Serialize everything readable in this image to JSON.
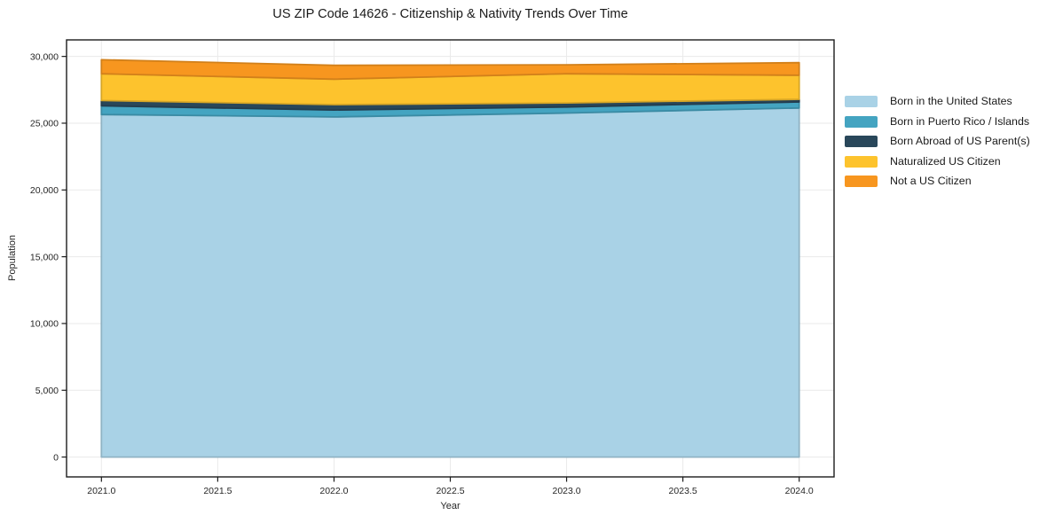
{
  "chart_data": {
    "type": "area",
    "stacked": true,
    "title": "US ZIP Code 14626 - Citizenship & Nativity Trends Over Time",
    "xlabel": "Year",
    "ylabel": "Population",
    "x": [
      2021,
      2022,
      2023,
      2024
    ],
    "series": [
      {
        "name": "Born in the United States",
        "color": "#a9d2e6",
        "values": [
          25650,
          25470,
          25760,
          26140
        ]
      },
      {
        "name": "Born in Puerto Rico / Islands",
        "color": "#44a4c1",
        "values": [
          650,
          520,
          450,
          450
        ]
      },
      {
        "name": "Born Abroad of US Parent(s)",
        "color": "#29475a",
        "values": [
          400,
          400,
          310,
          200
        ]
      },
      {
        "name": "Naturalized US Citizen",
        "color": "#fdc32d",
        "values": [
          2000,
          1910,
          2180,
          1800
        ]
      },
      {
        "name": "Not a US Citizen",
        "color": "#f7961f",
        "values": [
          1050,
          1030,
          670,
          940
        ]
      }
    ],
    "totals": [
      29750,
      29330,
      29370,
      29530
    ],
    "xlim": [
      2020.85,
      2024.15
    ],
    "ylim": [
      -1487.5,
      31237.5
    ],
    "xticks": {
      "values": [
        2021,
        2021.5,
        2022,
        2022.5,
        2023,
        2023.5,
        2024
      ],
      "labels": [
        "2021.0",
        "2021.5",
        "2022.0",
        "2022.5",
        "2023.0",
        "2023.5",
        "2024.0"
      ]
    },
    "yticks": {
      "values": [
        0,
        5000,
        10000,
        15000,
        20000,
        25000,
        30000
      ],
      "labels": [
        "0",
        "5,000",
        "10,000",
        "15,000",
        "20,000",
        "25,000",
        "30,000"
      ]
    },
    "grid": true,
    "legend_position": "center right",
    "colors": {
      "grid": "#eaeaea",
      "spine": "#1c1c1c",
      "tick_label": "#262626",
      "background": "#ffffff"
    }
  }
}
